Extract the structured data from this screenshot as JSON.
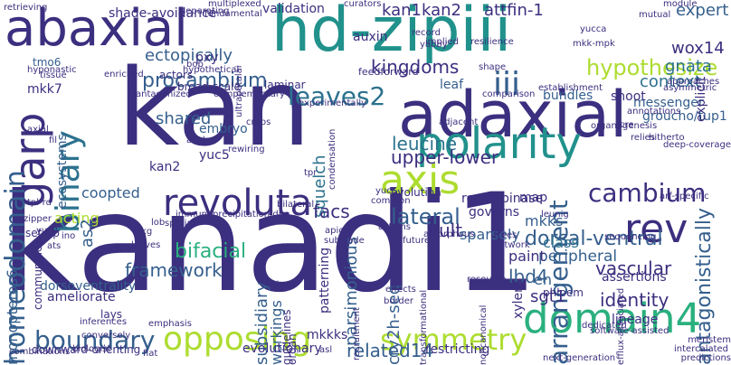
{
  "words": {
    "kanadi1": "kanadi1",
    "kan": "kan",
    "hd_zipiii": "hd-zipiii",
    "abaxial": "abaxial",
    "adaxial": "adaxial",
    "polarity": "polarity",
    "domain4": "domain4",
    "revoluta": "revoluta",
    "axis": "axis",
    "garp": "garp",
    "binary": "binary",
    "homeodomain": "homeodomain",
    "iii": "iii",
    "leaves2": "leaves2",
    "rev": "rev",
    "cambium": "cambium",
    "symmetry": "symmetry",
    "opposing": "opposing",
    "boundary": "boundary",
    "arrangement": "arrangement",
    "antagonistically": "antagonistically",
    "vascular": "vascular",
    "hypothesize": "hypothesize",
    "procambium": "procambium",
    "lateral": "lateral",
    "dorsal_ventral": "dorsal-ventral",
    "leucine": "leucine",
    "upper_lower": "upper-lower",
    "bifacial": "bifacial",
    "framework": "framework",
    "identity": "identity",
    "sgt1": "sgt1",
    "lbd4": "lbd4",
    "related14": "related14",
    "kingdoms": "kingdoms",
    "ectopically": "ectopically",
    "kan1kan2": "kan1kan2",
    "attfin_1": "attfin-1",
    "wox14": "wox14",
    "gnata": "gnata",
    "expert": "expert",
    "context": "context",
    "shared": "shared",
    "squelch": "squelch",
    "parsimonious": "parsimonious",
    "workings": "workings",
    "subsidiary": "subsidiary",
    "cry2h_seq": "cry2h-seq",
    "facs": "facs",
    "ult": "ult",
    "peripheral": "peripheral",
    "paint": "paint",
    "mkks": "mkks",
    "class": "class",
    "en": "en",
    "coopted": "coopted",
    "acting": "acting",
    "as2": "as2",
    "monopteros6": "monopteros6",
    "dorsoventrality": "dorsoventrality",
    "mkk7": "mkk7",
    "mkkks": "mkkks",
    "evolutionary": "evolutionary",
    "restricting": "restricting",
    "downward_orienting": "downward-orienting",
    "shade_avoidance": "shade-avoidance",
    "validation": "validation",
    "auxin": "auxin",
    "messenger": "messenger",
    "groucho_tup1": "groucho/tup1",
    "shoot": "shoot",
    "bundles": "bundles",
    "recombinase": "recombinase",
    "yuc5": "yuc5",
    "kan2": "kan2",
    "embryo": "embryo",
    "actors": "actors",
    "pxy": "pxy",
    "tmo6": "tmo6",
    "ecosystems": "ecosystems",
    "governs": "governs",
    "leaf": "leaf",
    "evolution": "evolution",
    "map": "map",
    "xylem": "xylem",
    "phloem": "phloem",
    "lineage": "lineage",
    "assertions": "assertions",
    "sparsely": "sparsely",
    "patterning": "patterning",
    "guidelines": "guidelines",
    "organ": "organ",
    "set_up": "set-up",
    "communities": "communities",
    "ameliorate": "ameliorate",
    "lays": "lays",
    "broad_scale": "broad-scale",
    "laminar": "laminar",
    "feedforward": "feedforward",
    "fundamental": "fundamental",
    "ultrapetalai": "ultrapetalai",
    "retrieving": "retrieving",
    "multiplexed": "multiplexed",
    "curators": "curators",
    "immunoprecipitation_dna": "immunoprecipitation/dna",
    "noncanonical": "noncanonical",
    "intercalated": "intercalated",
    "predictions": "predictions",
    "meristem": "meristem",
    "next_generation": "next-generation",
    "efflux_associated": "efflux-associated",
    "transformational": "transformational",
    "amorphous": "amorphous",
    "leunig": "leunig",
    "trees": "trees",
    "network": "network",
    "sequencing": "sequencing",
    "annotations": "annotations",
    "asymmetric": "asymmetric",
    "explicit": "explicit",
    "approaches": "approaches",
    "module": "module",
    "mutual": "mutual",
    "yucca": "yucca",
    "mkk_mpk": "mkk-mpk",
    "resilience": "resilience",
    "record": "record",
    "establishment": "establishment",
    "comparison": "comparison",
    "organogenesis": "organogenesis",
    "relies": "relies",
    "hitherto": "hitherto",
    "crabs": "crabs",
    "alleles": "alleles",
    "rewiring": "rewiring",
    "bilateral": "bilateral",
    "tpr": "tpr",
    "condensation": "condensation",
    "adjacent": "adjacent",
    "spatial": "spatial",
    "lob": "lob",
    "apical": "apical",
    "future": "future",
    "actions": "actions",
    "leaves": "leaves",
    "subclade": "subclade",
    "resource": "resource",
    "effects": "effects",
    "border": "border",
    "emphasis": "emphasis",
    "biologist": "biologist",
    "conversely": "conversely",
    "combinations": "combinations",
    "inferences": "inferences",
    "flat": "flat",
    "zipper": "zipper",
    "yuc2": "yuc2",
    "ats": "ats",
    "ino": "ino",
    "trkg": "trkg",
    "tpl_rd": "tpl-rd",
    "axial": "axial",
    "fil": "fil",
    "tissue": "tissue",
    "hyponastic": "hyponastic",
    "enriched": "enriched",
    "bop": "bop",
    "hypothetical": "hypothetical",
    "complementary": "complementary",
    "experimentally": "experimentally",
    "antagonized": "antagonized",
    "separating": "separating",
    "implied": "implied",
    "shape": "shape",
    "yabby": "yabby",
    "software_assisted": "software-assisted",
    "yuc": "yuc",
    "common": "common",
    "cre": "cre",
    "asl": "asl",
    "recruitment": "recruitment",
    "claw": "claw",
    "dedicated": "dedicated",
    "deep_coverage": "deep-coverage",
    "arf_specific": "arf-specific"
  },
  "colors": {
    "dark_purple": "#440154",
    "indigo": "#3b2f7f",
    "blue": "#355f8d",
    "steel": "#2c728e",
    "teal": "#21918c",
    "sea_green": "#2ab07f",
    "green": "#5ec962",
    "lime": "#addc30",
    "yellow": "#fde725",
    "background": "#ffffff"
  }
}
